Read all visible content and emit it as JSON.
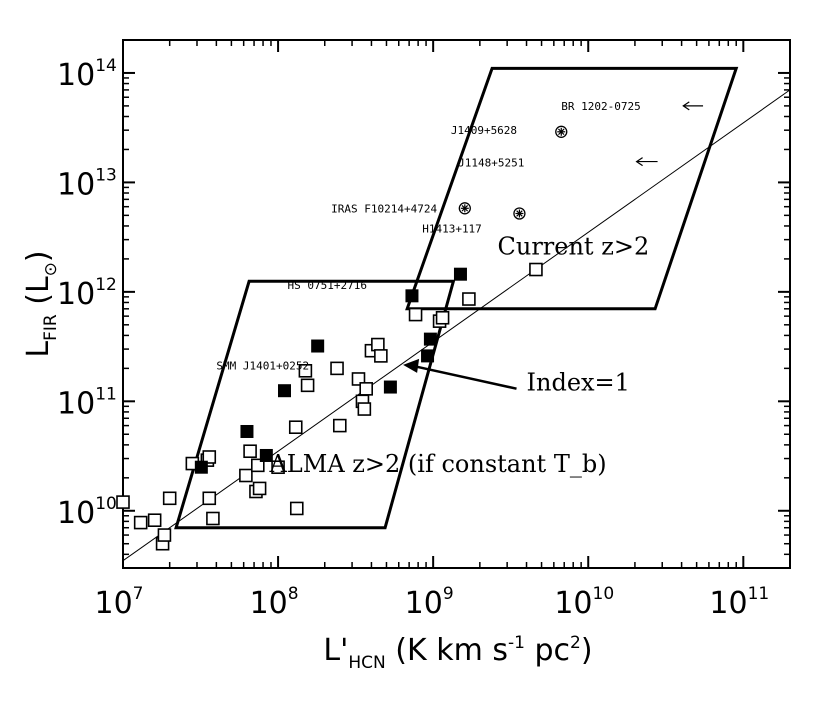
{
  "chart_data": {
    "type": "scatter",
    "x_scale": "log",
    "y_scale": "log",
    "xlim": [
      10000000.0,
      200000000000.0
    ],
    "ylim": [
      3000000000.0,
      200000000000000.0
    ],
    "x_ticks": [
      {
        "value": 10000000.0,
        "base": "10",
        "exp": "7"
      },
      {
        "value": 100000000.0,
        "base": "10",
        "exp": "8"
      },
      {
        "value": 1000000000.0,
        "base": "10",
        "exp": "9"
      },
      {
        "value": 10000000000.0,
        "base": "10",
        "exp": "10"
      },
      {
        "value": 100000000000.0,
        "base": "10",
        "exp": "11"
      }
    ],
    "y_ticks": [
      {
        "value": 10000000000.0,
        "base": "10",
        "exp": "10"
      },
      {
        "value": 100000000000.0,
        "base": "10",
        "exp": "11"
      },
      {
        "value": 1000000000000.0,
        "base": "10",
        "exp": "12"
      },
      {
        "value": 10000000000000.0,
        "base": "10",
        "exp": "13"
      },
      {
        "value": 100000000000000.0,
        "base": "10",
        "exp": "14"
      }
    ],
    "xlabel": {
      "pre": "L'",
      "sub": "HCN",
      "mid": " (K km s",
      "sup": "-1",
      "post": " pc",
      "sup2": "2",
      "end": ")"
    },
    "ylabel": {
      "pre": "L",
      "sub": "FIR",
      "mid": " (L",
      "sub2": "⊙",
      "end": ")"
    },
    "series": [
      {
        "marker": "open-square",
        "points": [
          [
            10000000.0,
            12000000000.0
          ],
          [
            13000000.0,
            7800000000.0
          ],
          [
            16000000.0,
            8200000000.0
          ],
          [
            18000000.0,
            5000000000.0
          ],
          [
            18500000.0,
            6000000000.0
          ],
          [
            20000000.0,
            13000000000.0
          ],
          [
            28000000.0,
            27000000000.0
          ],
          [
            35000000.0,
            29000000000.0
          ],
          [
            36000000.0,
            31000000000.0
          ],
          [
            36000000.0,
            13000000000.0
          ],
          [
            38000000.0,
            8500000000.0
          ],
          [
            62000000.0,
            21000000000.0
          ],
          [
            66000000.0,
            35000000000.0
          ],
          [
            72000000.0,
            15000000000.0
          ],
          [
            76000000.0,
            16000000000.0
          ],
          [
            74000000.0,
            26000000000.0
          ],
          [
            100000000.0,
            25000000000.0
          ],
          [
            132000000.0,
            10500000000.0
          ],
          [
            130000000.0,
            58000000000.0
          ],
          [
            150000000.0,
            190000000000.0
          ],
          [
            155000000.0,
            140000000000.0
          ],
          [
            240000000.0,
            200000000000.0
          ],
          [
            250000000.0,
            60000000000.0
          ],
          [
            330000000.0,
            160000000000.0
          ],
          [
            350000000.0,
            100000000000.0
          ],
          [
            360000000.0,
            85000000000.0
          ],
          [
            370000000.0,
            130000000000.0
          ],
          [
            400000000.0,
            290000000000.0
          ],
          [
            440000000.0,
            330000000000.0
          ],
          [
            460000000.0,
            260000000000.0
          ],
          [
            770000000.0,
            620000000000.0
          ],
          [
            1100000000.0,
            540000000000.0
          ],
          [
            1150000000.0,
            580000000000.0
          ],
          [
            1700000000.0,
            860000000000.0
          ],
          [
            4600000000.0,
            1600000000000.0
          ]
        ]
      },
      {
        "marker": "filled-square",
        "points": [
          [
            32000000.0,
            25000000000.0
          ],
          [
            63000000.0,
            53000000000.0
          ],
          [
            84000000.0,
            32000000000.0
          ],
          [
            110000000.0,
            125000000000.0
          ],
          [
            180000000.0,
            320000000000.0
          ],
          [
            530000000.0,
            135000000000.0
          ],
          [
            730000000.0,
            920000000000.0
          ],
          [
            920000000.0,
            260000000000.0
          ],
          [
            960000000.0,
            370000000000.0
          ],
          [
            1500000000.0,
            1450000000000.0
          ]
        ]
      },
      {
        "marker": "circled-asterisk",
        "points": [
          [
            6700000000.0,
            29000000000000.0
          ],
          [
            1600000000.0,
            5800000000000.0
          ],
          [
            3600000000.0,
            5200000000000.0
          ]
        ]
      }
    ],
    "source_labels": [
      {
        "text": "BR 1202-0725",
        "x": 6700000000.0,
        "y": 50000000000000.0
      },
      {
        "text": "J1409+5628",
        "x": 1300000000.0,
        "y": 30000000000000.0
      },
      {
        "text": "J1148+5251",
        "x": 1450000000.0,
        "y": 15200000000000.0
      },
      {
        "text": "IRAS F10214+4724",
        "x": 220000000.0,
        "y": 5800000000000.0
      },
      {
        "text": "H1413+117",
        "x": 850000000.0,
        "y": 3800000000000.0
      },
      {
        "text": "HS 0751+2716",
        "x": 115000000.0,
        "y": 1160000000000.0
      },
      {
        "text": "SMM J1401+0252",
        "x": 40000000.0,
        "y": 212000000000.0
      }
    ],
    "arrows": [
      {
        "from": [
          55000000000.0,
          50000000000000.0
        ],
        "to": [
          41000000000.0,
          50000000000000.0
        ]
      },
      {
        "from": [
          28000000000.0,
          15500000000000.0
        ],
        "to": [
          20500000000.0,
          15500000000000.0
        ]
      }
    ],
    "fit_line": {
      "label": "",
      "x_start": 10000000.0,
      "x_end": 200000000000.0,
      "y_at_1e7": 3500000000.0,
      "slope": 1
    },
    "regions": [
      {
        "label": "Current z>2",
        "points": [
          [
            680000000.0,
            700000000000.0
          ],
          [
            2400000000.0,
            110000000000000.0
          ],
          [
            90000000000.0,
            110000000000000.0
          ],
          [
            27000000000.0,
            700000000000.0
          ]
        ]
      },
      {
        "label": "ALMA z>2 (if constant T_b)",
        "points": [
          [
            22000000.0,
            7000000000.0
          ],
          [
            65000000.0,
            1250000000000.0
          ],
          [
            1350000000.0,
            1250000000000.0
          ],
          [
            490000000.0,
            7000000000.0
          ]
        ]
      }
    ],
    "annotations": [
      {
        "text": "Current z>2",
        "x": 2600000000.0,
        "y": 2200000000000.0
      },
      {
        "text": "Index=1",
        "text_x": 4000000000.0,
        "text_y": 125000000000.0,
        "arrow_tip": [
          640000000.0,
          215000000000.0
        ]
      },
      {
        "text": "ALMA z>2 (if constant T_b)",
        "x": 88000000.0,
        "y": 22500000000.0
      }
    ],
    "grid": false,
    "legend": "none"
  }
}
